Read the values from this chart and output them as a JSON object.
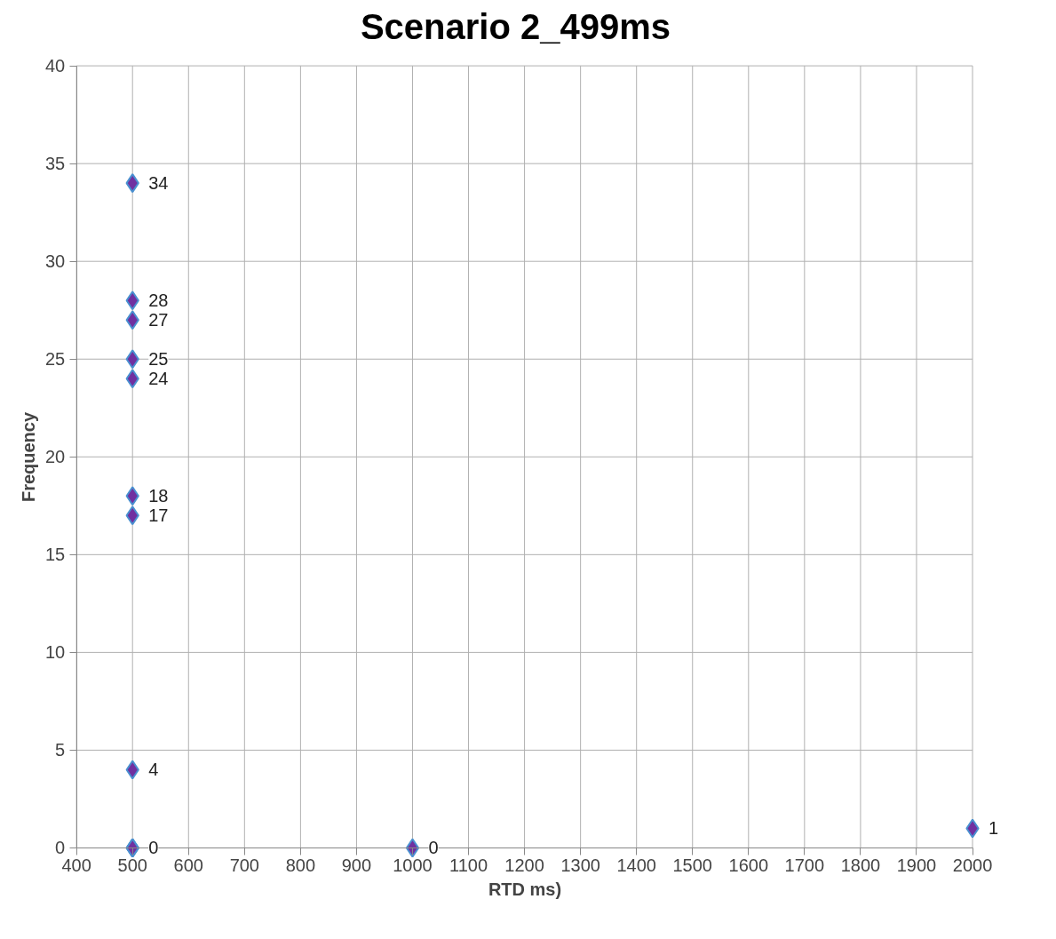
{
  "chart_data": {
    "type": "scatter",
    "title": "Scenario 2_499ms",
    "xlabel": "RTD ms)",
    "ylabel": "Frequency",
    "x": [
      500,
      500,
      500,
      500,
      500,
      500,
      500,
      500,
      500,
      500,
      500,
      1000,
      2000
    ],
    "series": [
      {
        "color": "#7030a0",
        "values": [
          34,
          28,
          27,
          25,
          24,
          18,
          17,
          4,
          0,
          0,
          0,
          0,
          1
        ]
      }
    ],
    "xlim": [
      400,
      2000
    ],
    "xticks": [
      400,
      500,
      600,
      700,
      800,
      900,
      1000,
      1100,
      1200,
      1300,
      1400,
      1500,
      1600,
      1700,
      1800,
      1900,
      2000
    ],
    "ylim": [
      0,
      40
    ],
    "yticks": [
      0,
      5,
      10,
      15,
      20,
      25,
      30,
      35,
      40
    ],
    "value_labels": [
      "34",
      "28",
      "27",
      "25",
      "24",
      "18",
      "17",
      "4",
      "0",
      null,
      null,
      "0",
      "1"
    ],
    "grid": true,
    "marker": "diamond"
  }
}
